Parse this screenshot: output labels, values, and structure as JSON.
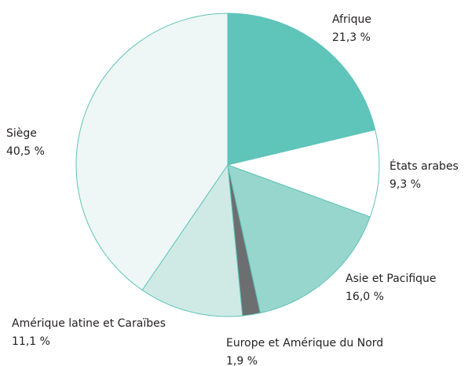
{
  "chart_data": {
    "type": "pie",
    "categories": [
      "Afrique",
      "États arabes",
      "Asie et Pacifique",
      "Europe et Amérique du Nord",
      "Amérique latine et Caraïbes",
      "Siège"
    ],
    "values": [
      21.3,
      9.3,
      16.0,
      1.9,
      11.1,
      40.5
    ],
    "value_labels": [
      "21,3 %",
      "9,3 %",
      "16,0 %",
      "1,9 %",
      "11,1 %",
      "40,5 %"
    ],
    "colors": [
      "#5fc4b9",
      "#ffffff",
      "#97d6cc",
      "#6d6e70",
      "#cfeae5",
      "#eef7f5"
    ]
  }
}
